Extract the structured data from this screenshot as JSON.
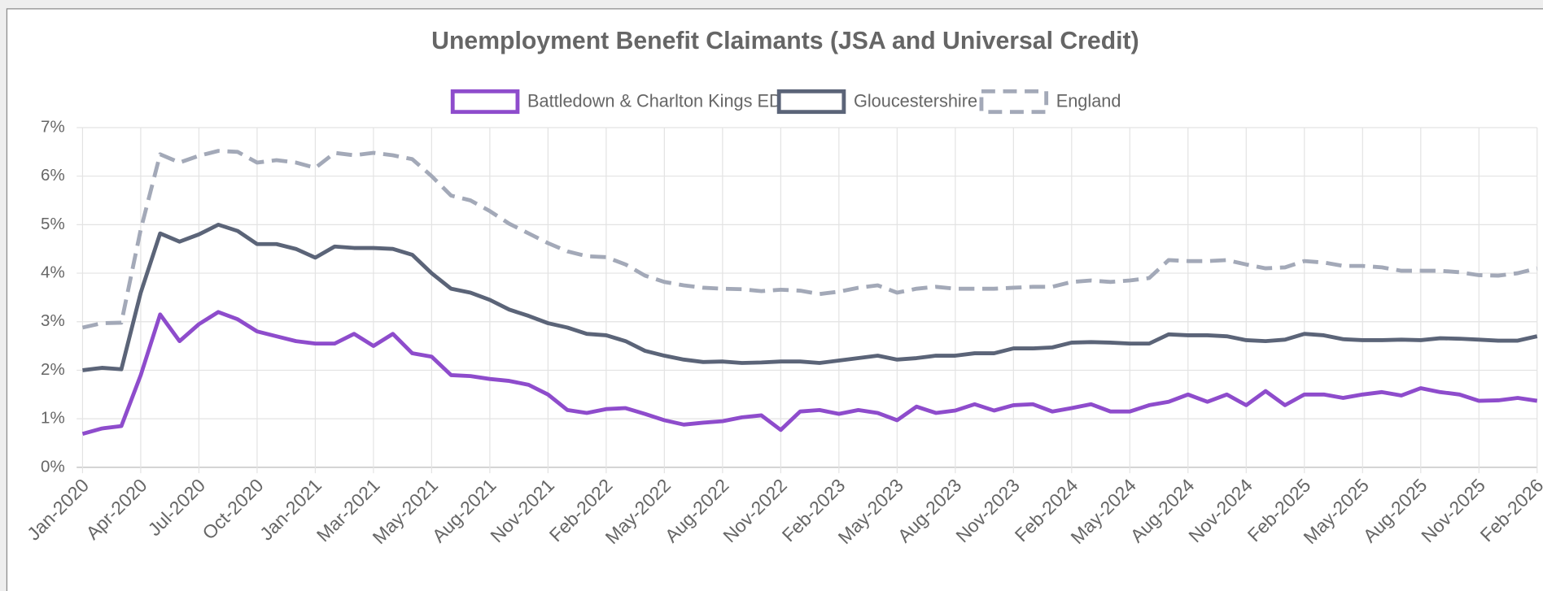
{
  "chart_data": {
    "type": "line",
    "title": "Unemployment Benefit Claimants (JSA and Universal Credit)",
    "categories": [
      "Jan-2020",
      null,
      null,
      "Apr-2020",
      null,
      null,
      "Jul-2020",
      null,
      null,
      "Oct-2020",
      null,
      null,
      "Jan-2021",
      null,
      null,
      "Mar-2021",
      null,
      null,
      "May-2021",
      null,
      null,
      "Aug-2021",
      null,
      null,
      "Nov-2021",
      null,
      null,
      "Feb-2022",
      null,
      null,
      "May-2022",
      null,
      null,
      "Aug-2022",
      null,
      null,
      "Nov-2022",
      null,
      null,
      "Feb-2023",
      null,
      null,
      "May-2023",
      null,
      null,
      "Aug-2023",
      null,
      null,
      "Nov-2023",
      null,
      null,
      "Feb-2024",
      null,
      null,
      "May-2024",
      null,
      null,
      "Aug-2024",
      null,
      null,
      "Nov-2024",
      null,
      null,
      "Feb-2025",
      null,
      null,
      "May-2025",
      null,
      null,
      "Aug-2025",
      null,
      null,
      "Nov-2025",
      null,
      null,
      "Feb-2026"
    ],
    "series": [
      {
        "name": "Battledown & Charlton Kings ED",
        "color": "#8e4ccc",
        "dashed": false,
        "values": [
          0.69,
          0.8,
          0.85,
          1.9,
          3.15,
          2.6,
          2.95,
          3.2,
          3.05,
          2.8,
          2.7,
          2.6,
          2.55,
          2.55,
          2.75,
          2.5,
          2.75,
          2.35,
          2.28,
          1.9,
          1.88,
          1.82,
          1.78,
          1.7,
          1.5,
          1.18,
          1.12,
          1.2,
          1.22,
          1.1,
          0.97,
          0.88,
          0.92,
          0.95,
          1.03,
          1.07,
          0.77,
          1.15,
          1.18,
          1.1,
          1.18,
          1.12,
          0.97,
          1.25,
          1.12,
          1.17,
          1.3,
          1.17,
          1.28,
          1.3,
          1.15,
          1.22,
          1.3,
          1.15,
          1.15,
          1.28,
          1.35,
          1.5,
          1.35,
          1.5,
          1.28,
          1.57,
          1.28,
          1.5,
          1.5,
          1.43,
          1.5,
          1.55,
          1.48,
          1.63,
          1.55,
          1.5,
          1.37,
          1.38,
          1.43,
          1.37
        ]
      },
      {
        "name": "Gloucestershire",
        "color": "#5b6478",
        "dashed": false,
        "values": [
          2.0,
          2.05,
          2.02,
          3.6,
          4.82,
          4.65,
          4.8,
          5.0,
          4.87,
          4.6,
          4.6,
          4.5,
          4.32,
          4.55,
          4.52,
          4.52,
          4.5,
          4.38,
          4.0,
          3.68,
          3.6,
          3.45,
          3.25,
          3.12,
          2.97,
          2.88,
          2.75,
          2.72,
          2.6,
          2.4,
          2.3,
          2.22,
          2.17,
          2.18,
          2.15,
          2.16,
          2.18,
          2.18,
          2.15,
          2.2,
          2.25,
          2.3,
          2.22,
          2.25,
          2.3,
          2.3,
          2.35,
          2.35,
          2.45,
          2.45,
          2.47,
          2.57,
          2.58,
          2.57,
          2.55,
          2.55,
          2.74,
          2.72,
          2.72,
          2.7,
          2.62,
          2.6,
          2.63,
          2.75,
          2.72,
          2.64,
          2.62,
          2.62,
          2.63,
          2.62,
          2.66,
          2.65,
          2.63,
          2.61,
          2.61,
          2.7
        ]
      },
      {
        "name": "England",
        "color": "#a3a9b8",
        "dashed": true,
        "values": [
          2.88,
          2.97,
          2.98,
          4.9,
          6.45,
          6.28,
          6.42,
          6.52,
          6.5,
          6.28,
          6.33,
          6.28,
          6.17,
          6.48,
          6.43,
          6.48,
          6.43,
          6.35,
          6.0,
          5.6,
          5.5,
          5.28,
          5.02,
          4.82,
          4.62,
          4.45,
          4.35,
          4.33,
          4.18,
          3.95,
          3.82,
          3.75,
          3.7,
          3.68,
          3.67,
          3.63,
          3.66,
          3.64,
          3.57,
          3.62,
          3.7,
          3.75,
          3.6,
          3.68,
          3.72,
          3.68,
          3.68,
          3.68,
          3.7,
          3.72,
          3.72,
          3.82,
          3.85,
          3.82,
          3.85,
          3.9,
          4.27,
          4.25,
          4.25,
          4.27,
          4.18,
          4.1,
          4.12,
          4.25,
          4.22,
          4.15,
          4.15,
          4.12,
          4.05,
          4.05,
          4.05,
          4.02,
          3.96,
          3.95,
          4.0,
          4.1
        ]
      }
    ],
    "ylim": [
      0,
      7
    ],
    "yticks": [
      {
        "value": 0,
        "label": "0%"
      },
      {
        "value": 1,
        "label": "1%"
      },
      {
        "value": 2,
        "label": "2%"
      },
      {
        "value": 3,
        "label": "3%"
      },
      {
        "value": 4,
        "label": "4%"
      },
      {
        "value": 5,
        "label": "5%"
      },
      {
        "value": 6,
        "label": "6%"
      },
      {
        "value": 7,
        "label": "7%"
      }
    ],
    "grid": true,
    "legend": "top"
  }
}
